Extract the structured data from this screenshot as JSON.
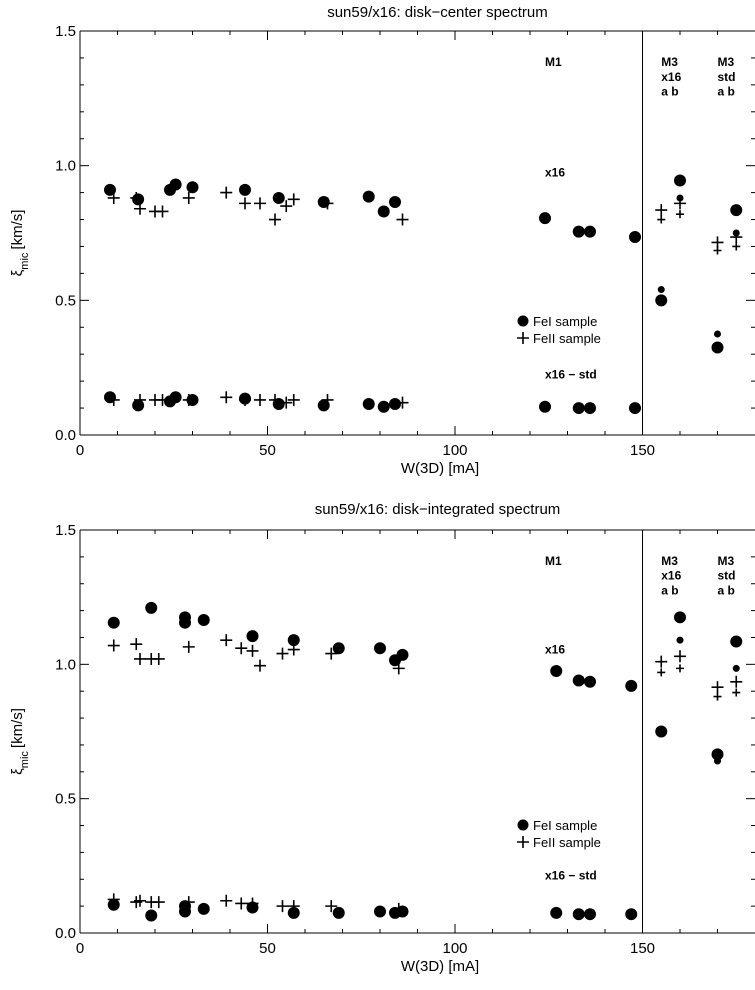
{
  "chart_data": [
    {
      "type": "scatter",
      "title": "sun59/x16: disk−center spectrum",
      "xlabel": "W(3D) [mA]",
      "ylabel_main": "ξ",
      "ylabel_sub": "mic",
      "ylabel_unit": "[km/s]",
      "xlim": [
        0,
        180
      ],
      "ylim": [
        0,
        1.5
      ],
      "x_ticks": [
        0,
        50,
        100,
        150
      ],
      "x_tick_labels": [
        "0",
        "50",
        "100",
        "150"
      ],
      "y_ticks": [
        0,
        0.5,
        1.0,
        1.5
      ],
      "y_tick_labels": [
        "0.0",
        "0.5",
        "1.0",
        "1.5"
      ],
      "divider_x": 150,
      "legend_position": "center-right",
      "annotations": [
        {
          "text": "M1",
          "x": 124,
          "y": 1.37
        },
        {
          "text": "x16",
          "x": 124,
          "y": 0.96
        },
        {
          "text": "x16 − std",
          "x": 124,
          "y": 0.21
        },
        {
          "text": "M3",
          "x": 155,
          "y": 1.37
        },
        {
          "text": "x16",
          "x": 155,
          "y": 1.315
        },
        {
          "text": "a  b",
          "x": 155,
          "y": 1.26
        },
        {
          "text": "M3",
          "x": 170,
          "y": 1.37
        },
        {
          "text": "std",
          "x": 170,
          "y": 1.315
        },
        {
          "text": "a  b",
          "x": 170,
          "y": 1.26
        }
      ],
      "series": [
        {
          "name": "FeI  sample",
          "marker": "circle",
          "x": [
            8,
            15.5,
            24,
            25.5,
            30,
            44,
            53,
            65,
            77,
            81,
            84,
            124,
            133,
            136,
            148,
            8,
            15.5,
            24,
            25.5,
            30,
            44,
            53,
            65,
            77,
            81,
            84,
            124,
            133,
            136,
            148
          ],
          "y": [
            0.91,
            0.875,
            0.91,
            0.93,
            0.92,
            0.91,
            0.88,
            0.865,
            0.885,
            0.83,
            0.865,
            0.805,
            0.755,
            0.755,
            0.735,
            0.14,
            0.11,
            0.125,
            0.14,
            0.13,
            0.135,
            0.115,
            0.11,
            0.115,
            0.105,
            0.115,
            0.105,
            0.1,
            0.1,
            0.1
          ]
        },
        {
          "name": "FeII sample",
          "marker": "plus",
          "x": [
            9,
            15,
            16,
            20,
            22,
            29,
            39,
            44,
            48,
            52,
            55,
            57,
            66,
            86,
            9,
            16,
            20,
            22,
            29,
            39,
            44,
            48,
            52,
            55,
            57,
            66,
            86
          ],
          "y": [
            0.88,
            0.88,
            0.84,
            0.83,
            0.83,
            0.88,
            0.9,
            0.86,
            0.86,
            0.8,
            0.85,
            0.875,
            0.86,
            0.8,
            0.13,
            0.13,
            0.13,
            0.13,
            0.13,
            0.14,
            0.13,
            0.13,
            0.13,
            0.12,
            0.13,
            0.13,
            0.12
          ]
        },
        {
          "name": "M3 FeI a",
          "marker": "circle",
          "x": [
            155,
            170
          ],
          "y": [
            0.5,
            0.325
          ]
        },
        {
          "name": "M3 FeI b",
          "marker": "circle-small",
          "x": [
            155,
            170
          ],
          "y": [
            0.54,
            0.375
          ]
        },
        {
          "name": "M3 FeI c",
          "marker": "circle",
          "x": [
            160,
            175
          ],
          "y": [
            0.945,
            0.835
          ]
        },
        {
          "name": "M3 FeI d",
          "marker": "circle-small",
          "x": [
            160,
            175
          ],
          "y": [
            0.88,
            0.75
          ]
        },
        {
          "name": "M3 FeII a",
          "marker": "plus",
          "x": [
            155,
            160,
            170,
            175
          ],
          "y": [
            0.835,
            0.86,
            0.715,
            0.735
          ]
        },
        {
          "name": "M3 FeII b",
          "marker": "plus-small",
          "x": [
            155,
            160,
            170,
            175
          ],
          "y": [
            0.8,
            0.82,
            0.685,
            0.7
          ]
        }
      ]
    },
    {
      "type": "scatter",
      "title": "sun59/x16: disk−integrated spectrum",
      "xlabel": "W(3D) [mA]",
      "ylabel_main": "ξ",
      "ylabel_sub": "mic",
      "ylabel_unit": "[km/s]",
      "xlim": [
        0,
        180
      ],
      "ylim": [
        0,
        1.5
      ],
      "x_ticks": [
        0,
        50,
        100,
        150
      ],
      "x_tick_labels": [
        "0",
        "50",
        "100",
        "150"
      ],
      "y_ticks": [
        0,
        0.5,
        1.0,
        1.5
      ],
      "y_tick_labels": [
        "0.0",
        "0.5",
        "1.0",
        "1.5"
      ],
      "divider_x": 150,
      "legend_position": "center-right",
      "annotations": [
        {
          "text": "M1",
          "x": 124,
          "y": 1.37
        },
        {
          "text": "x16",
          "x": 124,
          "y": 1.04
        },
        {
          "text": "x16 − std",
          "x": 124,
          "y": 0.2
        },
        {
          "text": "M3",
          "x": 155,
          "y": 1.37
        },
        {
          "text": "x16",
          "x": 155,
          "y": 1.315
        },
        {
          "text": "a  b",
          "x": 155,
          "y": 1.26
        },
        {
          "text": "M3",
          "x": 170,
          "y": 1.37
        },
        {
          "text": "std",
          "x": 170,
          "y": 1.315
        },
        {
          "text": "a  b",
          "x": 170,
          "y": 1.26
        }
      ],
      "series": [
        {
          "name": "FeI  sample",
          "marker": "circle",
          "x": [
            9,
            19,
            28,
            28,
            33,
            46,
            57,
            69,
            80,
            84,
            86,
            127,
            133,
            136,
            147,
            9,
            19,
            28,
            28,
            33,
            46,
            57,
            69,
            80,
            84,
            86,
            127,
            133,
            136,
            147
          ],
          "y": [
            1.155,
            1.21,
            1.175,
            1.155,
            1.165,
            1.105,
            1.09,
            1.06,
            1.06,
            1.015,
            1.035,
            0.975,
            0.94,
            0.935,
            0.92,
            0.105,
            0.065,
            0.08,
            0.1,
            0.09,
            0.095,
            0.075,
            0.075,
            0.08,
            0.075,
            0.08,
            0.075,
            0.07,
            0.07,
            0.07
          ]
        },
        {
          "name": "FeII sample",
          "marker": "plus",
          "x": [
            9,
            15,
            16,
            19,
            21,
            29,
            39,
            43,
            46,
            48,
            54,
            57,
            67,
            85,
            9,
            15,
            16,
            19,
            21,
            29,
            39,
            43,
            46,
            54,
            57,
            67,
            85
          ],
          "y": [
            1.07,
            1.075,
            1.02,
            1.02,
            1.02,
            1.065,
            1.09,
            1.06,
            1.05,
            0.995,
            1.04,
            1.055,
            1.04,
            0.985,
            0.125,
            0.115,
            0.12,
            0.115,
            0.115,
            0.115,
            0.12,
            0.11,
            0.11,
            0.1,
            0.1,
            0.1,
            0.09
          ]
        },
        {
          "name": "M3 FeI a",
          "marker": "circle",
          "x": [
            155,
            170
          ],
          "y": [
            0.75,
            0.665
          ]
        },
        {
          "name": "M3 FeI b",
          "marker": "circle-small",
          "x": [
            155,
            170
          ],
          "y": [
            0.75,
            0.64
          ]
        },
        {
          "name": "M3 FeI c",
          "marker": "circle",
          "x": [
            160,
            175
          ],
          "y": [
            1.175,
            1.085
          ]
        },
        {
          "name": "M3 FeI d",
          "marker": "circle-small",
          "x": [
            160,
            175
          ],
          "y": [
            1.09,
            0.985
          ]
        },
        {
          "name": "M3 FeII a",
          "marker": "plus",
          "x": [
            155,
            160,
            170,
            175
          ],
          "y": [
            1.01,
            1.03,
            0.915,
            0.935
          ]
        },
        {
          "name": "M3 FeII b",
          "marker": "plus-small",
          "x": [
            155,
            160,
            170,
            175
          ],
          "y": [
            0.97,
            0.985,
            0.88,
            0.895
          ]
        }
      ]
    }
  ]
}
